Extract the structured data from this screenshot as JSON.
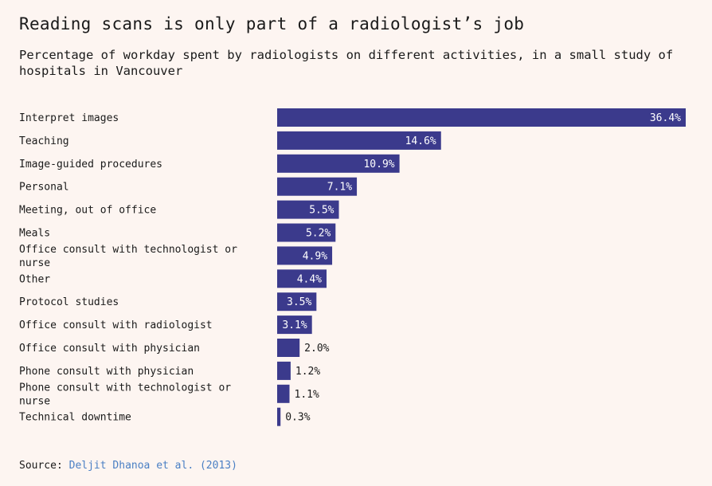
{
  "title": "Reading scans is only part of a radiologist’s job",
  "subtitle": "Percentage of workday spent by radiologists on different activities, in a small study of hospitals in Vancouver",
  "source": {
    "prefix": "Source:",
    "link_text": "Deljit Dhanoa et al. (2013)"
  },
  "colors": {
    "background": "#fdf5f1",
    "bar": "#3b3a8c",
    "link": "#4a7fc4"
  },
  "chart_data": {
    "type": "bar",
    "orientation": "horizontal",
    "title": "Reading scans is only part of a radiologist’s job",
    "categories": [
      [
        "Interpret images"
      ],
      [
        "Teaching"
      ],
      [
        "Image-guided procedures"
      ],
      [
        "Personal"
      ],
      [
        "Meeting, out of office"
      ],
      [
        "Meals"
      ],
      [
        "Office consult with technologist or",
        "nurse"
      ],
      [
        "Other"
      ],
      [
        "Protocol studies"
      ],
      [
        "Office consult with radiologist"
      ],
      [
        "Office consult with physician"
      ],
      [
        "Phone consult with physician"
      ],
      [
        "Phone consult with technologist or",
        "nurse"
      ],
      [
        "Technical downtime"
      ]
    ],
    "values": [
      36.4,
      14.6,
      10.9,
      7.1,
      5.5,
      5.2,
      4.9,
      4.4,
      3.5,
      3.1,
      2.0,
      1.2,
      1.1,
      0.3
    ],
    "value_labels": [
      "36.4%",
      "14.6%",
      "10.9%",
      "7.1%",
      "5.5%",
      "5.2%",
      "4.9%",
      "4.4%",
      "3.5%",
      "3.1%",
      "2.0%",
      "1.2%",
      "1.1%",
      "0.3%"
    ],
    "xlim": [
      0,
      36.4
    ],
    "grid": false,
    "legend": "none"
  }
}
